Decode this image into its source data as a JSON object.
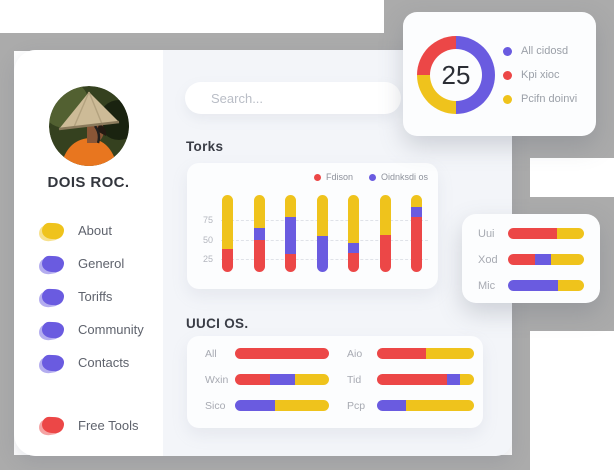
{
  "colors": {
    "red": "#ec4747",
    "purple": "#6a5be0",
    "yellow": "#efc31c",
    "frame_gray": "#ababab",
    "dashboard_bg": "#f3f5f9",
    "card_bg": "#fcfdfe"
  },
  "sidebar": {
    "profile_name": "DOIS ROC.",
    "menu_items": [
      {
        "label": "About",
        "color": "yellow"
      },
      {
        "label": "Generol",
        "color": "purple"
      },
      {
        "label": "Toriffs",
        "color": "purple"
      },
      {
        "label": "Community",
        "color": "purple"
      },
      {
        "label": "Contacts",
        "color": "purple"
      }
    ],
    "footer_item": {
      "label": "Free Tools",
      "color": "red"
    }
  },
  "search": {
    "placeholder": "Search..."
  },
  "donut_card": {
    "center_value": "25",
    "ring": [
      {
        "color": "purple",
        "pct": 50
      },
      {
        "color": "yellow",
        "pct": 25
      },
      {
        "color": "red",
        "pct": 25
      }
    ],
    "legend": [
      {
        "label": "All cidosd",
        "color": "purple"
      },
      {
        "label": "Kpi xioc",
        "color": "red"
      },
      {
        "label": "Pcifn doinvi",
        "color": "yellow"
      }
    ]
  },
  "torks_chart": {
    "title": "Torks",
    "type": "stacked-bar",
    "legend": [
      {
        "label": "Fdison",
        "color": "red"
      },
      {
        "label": "Oidnksdi os",
        "color": "purple"
      }
    ],
    "y_ticks": [
      "75",
      "50",
      "25"
    ],
    "y_max": 106,
    "series_order": [
      "red",
      "purple",
      "yellow"
    ],
    "bars": [
      {
        "red": 32,
        "purple": 0,
        "yellow": 74
      },
      {
        "red": 44,
        "purple": 16,
        "yellow": 46
      },
      {
        "red": 25,
        "purple": 51,
        "yellow": 30
      },
      {
        "red": 0,
        "purple": 50,
        "yellow": 56
      },
      {
        "red": 26,
        "purple": 14,
        "yellow": 66
      },
      {
        "red": 51,
        "purple": 0,
        "yellow": 55
      },
      {
        "red": 76,
        "purple": 13,
        "yellow": 17
      }
    ]
  },
  "uuci_chart": {
    "title": "UUCI OS.",
    "type": "horizontal-stacked-bar",
    "rows": [
      {
        "label": "All",
        "segments": [
          {
            "color": "red",
            "pct": 100
          }
        ]
      },
      {
        "label": "Wxin",
        "segments": [
          {
            "color": "red",
            "pct": 37
          },
          {
            "color": "purple",
            "pct": 27
          },
          {
            "color": "yellow",
            "pct": 36
          }
        ]
      },
      {
        "label": "Sico",
        "segments": [
          {
            "color": "purple",
            "pct": 43
          },
          {
            "color": "yellow",
            "pct": 57
          }
        ]
      },
      {
        "label": "Aio",
        "segments": [
          {
            "color": "red",
            "pct": 50
          },
          {
            "color": "yellow",
            "pct": 50
          }
        ]
      },
      {
        "label": "Tid",
        "segments": [
          {
            "color": "red",
            "pct": 72
          },
          {
            "color": "purple",
            "pct": 14
          },
          {
            "color": "yellow",
            "pct": 14
          }
        ]
      },
      {
        "label": "Pcp",
        "segments": [
          {
            "color": "purple",
            "pct": 30
          },
          {
            "color": "yellow",
            "pct": 70
          }
        ]
      }
    ]
  },
  "side_card": {
    "type": "horizontal-stacked-bar",
    "rows": [
      {
        "label": "Uui",
        "segments": [
          {
            "color": "red",
            "pct": 64
          },
          {
            "color": "yellow",
            "pct": 36
          }
        ]
      },
      {
        "label": "Xod",
        "segments": [
          {
            "color": "red",
            "pct": 36
          },
          {
            "color": "purple",
            "pct": 21
          },
          {
            "color": "yellow",
            "pct": 43
          }
        ]
      },
      {
        "label": "Mic",
        "segments": [
          {
            "color": "purple",
            "pct": 66
          },
          {
            "color": "yellow",
            "pct": 34
          }
        ]
      }
    ]
  }
}
